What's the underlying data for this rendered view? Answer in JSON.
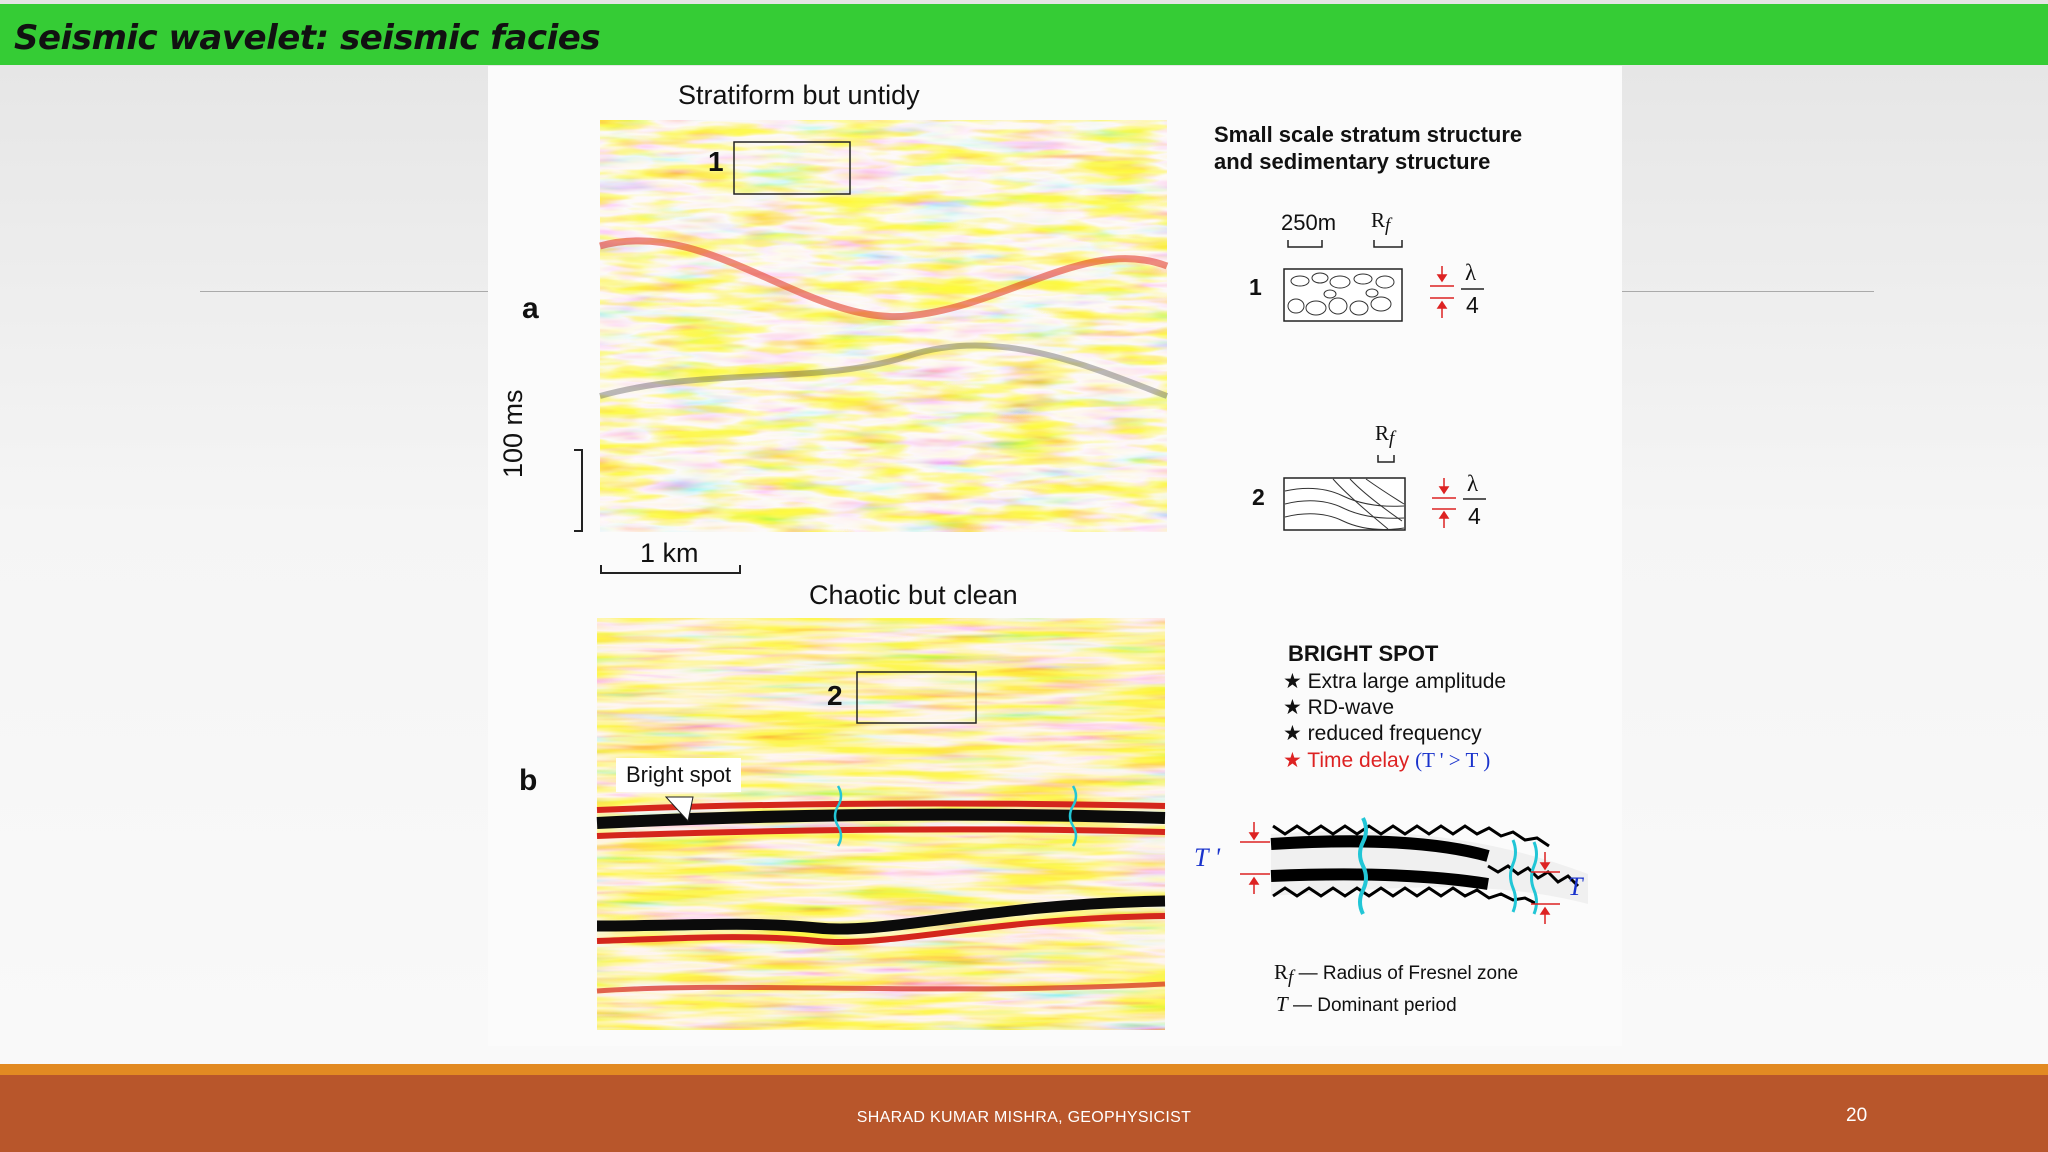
{
  "slide": {
    "title": "Seismic wavelet: seismic facies",
    "footer_text": "SHARAD KUMAR MISHRA, GEOPHYSICIST",
    "page_number": "20"
  },
  "figure": {
    "panel_a": {
      "letter": "a",
      "title": "Stratiform but untidy",
      "box_label": "1",
      "time_scale": "100 ms",
      "distance_scale": "1 km"
    },
    "panel_b": {
      "letter": "b",
      "title": "Chaotic but clean",
      "box_label": "2",
      "callout": "Bright spot"
    },
    "schematic": {
      "heading_line1": "Small scale stratum structure",
      "heading_line2": "and sedimentary structure",
      "scale_250m": "250m",
      "rf_label": "R",
      "rf_sub": "f",
      "item1": "1",
      "item2": "2",
      "lambda": "λ",
      "quarter": "4"
    },
    "bright_spot": {
      "heading": "BRIGHT SPOT",
      "star": "★",
      "items": [
        "Extra large amplitude",
        "RD-wave",
        "reduced frequency"
      ],
      "time_delay": "Time delay",
      "time_delay_note": "(T ' > T )",
      "t_prime": "T '",
      "t": "T"
    },
    "legend": {
      "rf_desc": "— Radius of Fresnel zone",
      "t_desc": "— Dominant period"
    }
  },
  "colors": {
    "title_bar": "#35cc35",
    "footer": "#b8562b",
    "footer_stripe": "#e28a22",
    "seismic_yellow": "#f7c21a",
    "seismic_red": "#e0301c",
    "annotation_red": "#d22222",
    "annotation_blue": "#1a33cc",
    "wavelet_cyan": "#22c6d6"
  }
}
